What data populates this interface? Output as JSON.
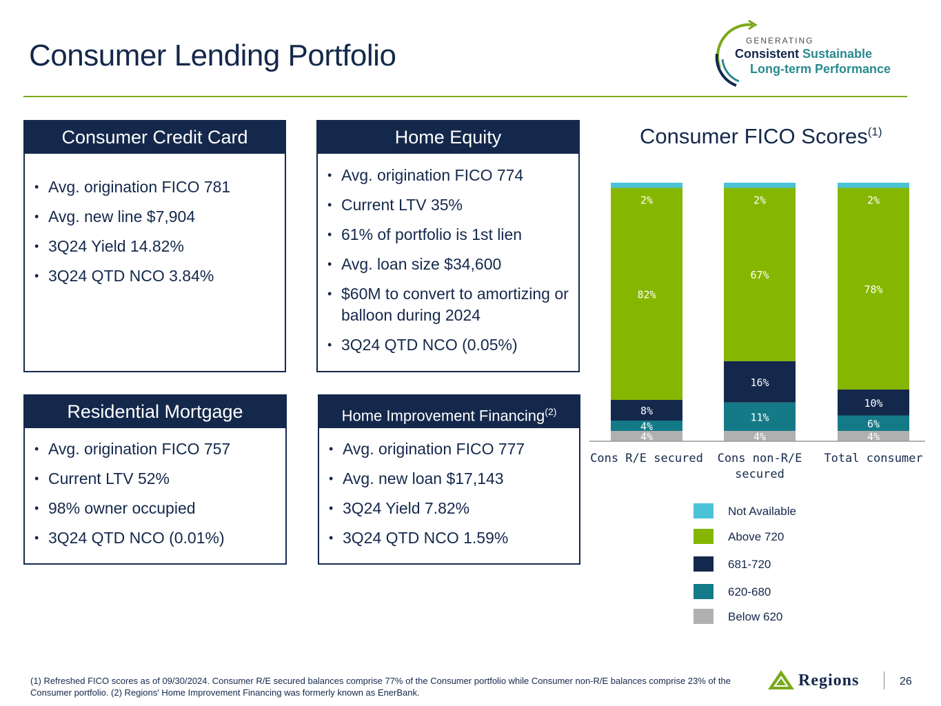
{
  "page": {
    "title": "Consumer Lending Portfolio",
    "page_number": "26"
  },
  "badge": {
    "line0": "GENERATING",
    "line1a": "Consistent",
    "line1b": "Sustainable",
    "line2": "Long-term Performance"
  },
  "boxes": {
    "credit_card": {
      "title": "Consumer Credit Card",
      "bullets": [
        "Avg. origination FICO 781",
        "Avg. new line $7,904",
        "3Q24 Yield 14.82%",
        "3Q24 QTD NCO 3.84%"
      ]
    },
    "home_equity": {
      "title": "Home Equity",
      "bullets": [
        "Avg. origination FICO 774",
        "Current LTV 35%",
        "61% of portfolio is 1st lien",
        "Avg. loan size $34,600",
        "$60M to convert to amortizing or balloon during 2024",
        "3Q24 QTD NCO (0.05%)"
      ]
    },
    "residential": {
      "title": "Residential Mortgage",
      "bullets": [
        "Avg. origination FICO 757",
        "Current LTV 52%",
        "98% owner occupied",
        "3Q24 QTD NCO (0.01%)"
      ]
    },
    "home_improvement": {
      "title": "Home Improvement Financing",
      "title_sup": "(2)",
      "bullets": [
        "Avg. origination FICO 777",
        "Avg. new loan $17,143",
        "3Q24 Yield 7.82%",
        "3Q24 QTD NCO 1.59%"
      ]
    }
  },
  "chart_title": "Consumer FICO Scores",
  "chart_title_sup": "(1)",
  "chart_data": {
    "type": "bar",
    "stacked": true,
    "categories": [
      "Cons R/E secured",
      "Cons non-R/E secured",
      "Total consumer"
    ],
    "series": [
      {
        "name": "Below 620",
        "color": "#b1b0b0",
        "values": [
          4,
          4,
          4
        ],
        "labels": [
          "4%",
          "4%",
          "4%"
        ]
      },
      {
        "name": "620-680",
        "color": "#157a87",
        "values": [
          4,
          11,
          6
        ],
        "labels": [
          "4%",
          "11%",
          "6%"
        ]
      },
      {
        "name": "681-720",
        "color": "#14284b",
        "values": [
          8,
          16,
          10
        ],
        "labels": [
          "8%",
          "16%",
          "10%"
        ]
      },
      {
        "name": "Above 720",
        "color": "#86b700",
        "values": [
          82,
          67,
          78
        ],
        "labels": [
          "82%",
          "67%",
          "78%"
        ]
      },
      {
        "name": "Not Available",
        "color": "#4bc3d6",
        "values": [
          2,
          2,
          2
        ],
        "labels": [
          "2%",
          "2%",
          "2%"
        ]
      }
    ],
    "legend_position": "bottom"
  },
  "legend": [
    {
      "name": "Not Available",
      "color": "#4bc3d6"
    },
    {
      "name": "Above 720",
      "color": "#86b700"
    },
    {
      "name": "681-720",
      "color": "#14284b"
    },
    {
      "name": "620-680",
      "color": "#157a87"
    },
    {
      "name": "Below 620",
      "color": "#b1b0b0"
    }
  ],
  "footnote": "(1) Refreshed FICO scores as of 09/30/2024. Consumer R/E secured balances comprise 77% of the Consumer portfolio while Consumer non-R/E balances comprise 23% of the Consumer portfolio. (2) Regions' Home Improvement Financing was formerly known as EnerBank.",
  "logo_text": "Regions"
}
